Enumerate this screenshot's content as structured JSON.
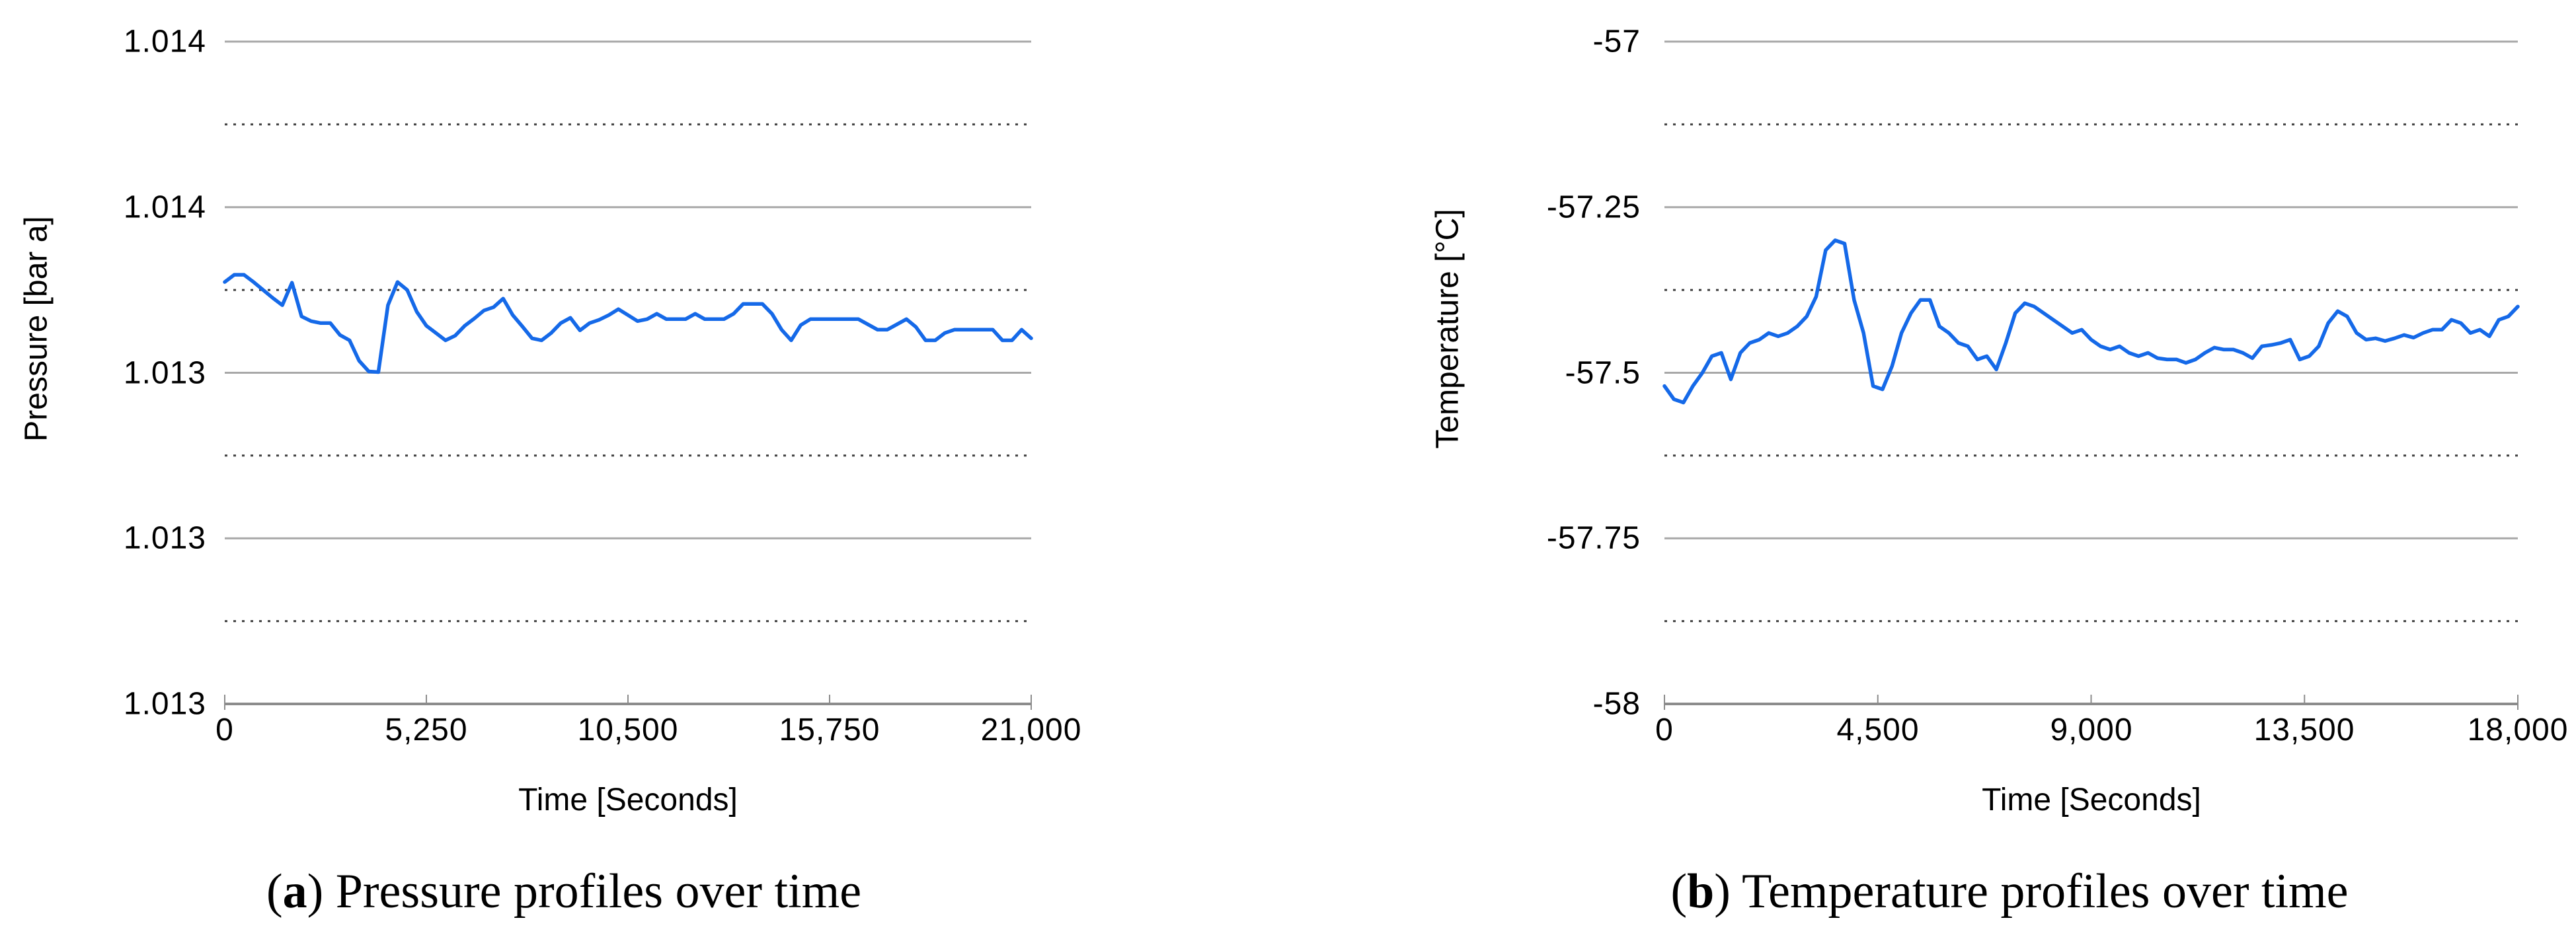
{
  "colors": {
    "background": "#ffffff",
    "series_line": "#1569E8",
    "gridline_major": "#a8a8a8",
    "gridline_minor": "#3f3f3f",
    "axis_line": "#8c8c8c",
    "tick_mark": "#8c8c8c",
    "text": "#000000"
  },
  "chart_data": [
    {
      "id": "pressure",
      "type": "line",
      "caption": {
        "open": "(",
        "letter": "a",
        "close": ")",
        "text": " Pressure profiles over time"
      },
      "xlabel": "Time [Seconds]",
      "ylabel": "Pressure [bar a]",
      "xlim": [
        0,
        21000
      ],
      "ylim": [
        1.0128,
        1.0138
      ],
      "x_ticks": [
        0,
        5250,
        10500,
        15750,
        21000
      ],
      "x_tick_labels": [
        "0",
        "5,250",
        "10,500",
        "15,750",
        "21,000"
      ],
      "y_ticks_top_to_bottom": [
        1.0138,
        1.01355,
        1.0133,
        1.01305,
        1.0128
      ],
      "y_tick_labels": [
        "1.014",
        "1.014",
        "1.013",
        "1.013",
        "1.013"
      ],
      "y_minor_gridlines": [
        1.013675,
        1.013425,
        1.013175,
        1.012925
      ],
      "grid": {
        "major": "solid",
        "minor": "dotted"
      },
      "legend": "none",
      "line_color": "#1569E8",
      "series": [
        {
          "name": "Pressure",
          "x": [
            0,
            250,
            500,
            750,
            1000,
            1250,
            1500,
            1750,
            2000,
            2250,
            2500,
            2750,
            3000,
            3250,
            3500,
            3750,
            4000,
            4250,
            4500,
            4750,
            5000,
            5250,
            5500,
            5750,
            6000,
            6250,
            6500,
            6750,
            7000,
            7250,
            7500,
            7750,
            8000,
            8250,
            8500,
            8750,
            9000,
            9250,
            9500,
            9750,
            10000,
            10250,
            10500,
            10750,
            11000,
            11250,
            11500,
            11750,
            12000,
            12250,
            12500,
            12750,
            13000,
            13250,
            13500,
            13750,
            14000,
            14250,
            14500,
            14750,
            15000,
            15250,
            15500,
            15750,
            16000,
            16250,
            16500,
            16750,
            17000,
            17250,
            17500,
            17750,
            18000,
            18250,
            18500,
            18750,
            19000,
            19250,
            19500,
            19750,
            20000,
            20250,
            20500,
            20750,
            21000
          ],
          "y": [
            1.013437,
            1.013448,
            1.013448,
            1.013437,
            1.013425,
            1.013413,
            1.013402,
            1.013436,
            1.013385,
            1.013378,
            1.013375,
            1.013375,
            1.013357,
            1.013349,
            1.013318,
            1.013302,
            1.013301,
            1.013402,
            1.013437,
            1.013425,
            1.013392,
            1.013371,
            1.01336,
            1.013349,
            1.013356,
            1.013371,
            1.013382,
            1.013394,
            1.013399,
            1.013412,
            1.013387,
            1.01337,
            1.013352,
            1.013349,
            1.01336,
            1.013375,
            1.013383,
            1.013364,
            1.013375,
            1.01338,
            1.013387,
            1.013396,
            1.013387,
            1.013378,
            1.013381,
            1.013389,
            1.013381,
            1.013381,
            1.013381,
            1.013389,
            1.013381,
            1.013381,
            1.013381,
            1.013389,
            1.013404,
            1.013404,
            1.013404,
            1.013389,
            1.013365,
            1.013349,
            1.013372,
            1.013381,
            1.013381,
            1.013381,
            1.013381,
            1.013381,
            1.013381,
            1.013373,
            1.013365,
            1.013365,
            1.013373,
            1.013381,
            1.013369,
            1.013349,
            1.013349,
            1.01336,
            1.013365,
            1.013365,
            1.013365,
            1.013365,
            1.013365,
            1.013349,
            1.013349,
            1.013365,
            1.013352
          ]
        }
      ]
    },
    {
      "id": "temperature",
      "type": "line",
      "caption": {
        "open": "(",
        "letter": "b",
        "close": ")",
        "text": " Temperature profiles over time"
      },
      "xlabel": "Time [Seconds]",
      "ylabel": "Temperature [°C]",
      "xlim": [
        0,
        18000
      ],
      "ylim": [
        -58,
        -57
      ],
      "x_ticks": [
        0,
        4500,
        9000,
        13500,
        18000
      ],
      "x_tick_labels": [
        "0",
        "4,500",
        "9,000",
        "13,500",
        "18,000"
      ],
      "y_ticks_top_to_bottom": [
        -57,
        -57.25,
        -57.5,
        -57.75,
        -58
      ],
      "y_tick_labels": [
        "-57",
        "-57.25",
        "-57.5",
        "-57.75",
        "-58"
      ],
      "y_minor_gridlines": [
        -57.125,
        -57.375,
        -57.625,
        -57.875
      ],
      "grid": {
        "major": "solid",
        "minor": "dotted"
      },
      "legend": "none",
      "line_color": "#1569E8",
      "series": [
        {
          "name": "Temperature",
          "x": [
            0,
            200,
            400,
            600,
            800,
            1000,
            1200,
            1400,
            1600,
            1800,
            2000,
            2200,
            2400,
            2600,
            2800,
            3000,
            3200,
            3400,
            3600,
            3800,
            4000,
            4200,
            4400,
            4600,
            4800,
            5000,
            5200,
            5400,
            5600,
            5800,
            6000,
            6200,
            6400,
            6600,
            6800,
            7000,
            7200,
            7400,
            7600,
            7800,
            8000,
            8200,
            8400,
            8600,
            8800,
            9000,
            9200,
            9400,
            9600,
            9800,
            10000,
            10200,
            10400,
            10600,
            10800,
            11000,
            11200,
            11400,
            11600,
            11800,
            12000,
            12200,
            12400,
            12600,
            12800,
            13000,
            13200,
            13400,
            13600,
            13800,
            14000,
            14200,
            14400,
            14600,
            14800,
            15000,
            15200,
            15400,
            15600,
            15800,
            16000,
            16200,
            16400,
            16600,
            16800,
            17000,
            17200,
            17400,
            17600,
            17800,
            18000
          ],
          "y": [
            -57.52,
            -57.54,
            -57.545,
            -57.52,
            -57.5,
            -57.475,
            -57.47,
            -57.51,
            -57.47,
            -57.455,
            -57.45,
            -57.44,
            -57.445,
            -57.44,
            -57.43,
            -57.415,
            -57.385,
            -57.315,
            -57.3,
            -57.305,
            -57.39,
            -57.44,
            -57.52,
            -57.525,
            -57.49,
            -57.44,
            -57.41,
            -57.39,
            -57.39,
            -57.43,
            -57.44,
            -57.455,
            -57.46,
            -57.48,
            -57.475,
            -57.495,
            -57.455,
            -57.41,
            -57.395,
            -57.4,
            -57.41,
            -57.42,
            -57.43,
            -57.44,
            -57.435,
            -57.45,
            -57.46,
            -57.465,
            -57.46,
            -57.47,
            -57.475,
            -57.47,
            -57.478,
            -57.48,
            -57.48,
            -57.485,
            -57.48,
            -57.47,
            -57.462,
            -57.465,
            -57.465,
            -57.47,
            -57.478,
            -57.46,
            -57.458,
            -57.455,
            -57.45,
            -57.48,
            -57.475,
            -57.46,
            -57.425,
            -57.407,
            -57.415,
            -57.44,
            -57.45,
            -57.448,
            -57.452,
            -57.448,
            -57.443,
            -57.447,
            -57.44,
            -57.435,
            -57.435,
            -57.42,
            -57.425,
            -57.44,
            -57.435,
            -57.445,
            -57.42,
            -57.415,
            -57.4
          ]
        }
      ]
    }
  ]
}
